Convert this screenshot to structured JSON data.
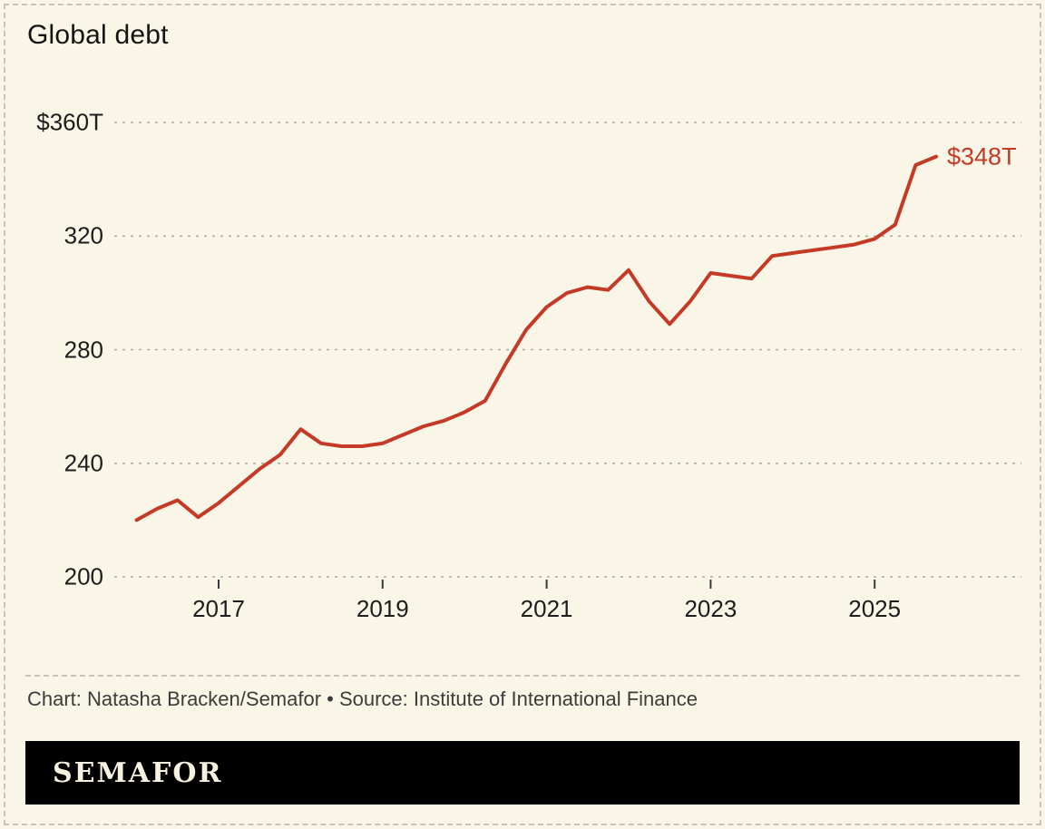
{
  "header": {
    "title": "Global debt"
  },
  "chart_data": {
    "type": "line",
    "title": "Global debt",
    "unit": "USD trillions",
    "series_name": "Global debt",
    "line_color": "#c43a27",
    "x": [
      2016,
      2016.25,
      2016.5,
      2016.75,
      2017,
      2017.25,
      2017.5,
      2017.75,
      2018,
      2018.25,
      2018.5,
      2018.75,
      2019,
      2019.25,
      2019.5,
      2019.75,
      2020,
      2020.25,
      2020.5,
      2020.75,
      2021,
      2021.25,
      2021.5,
      2021.75,
      2022,
      2022.25,
      2022.5,
      2022.75,
      2023,
      2023.25,
      2023.5,
      2023.75,
      2024,
      2024.25,
      2024.5,
      2024.75,
      2025,
      2025.25,
      2025.5,
      2025.75
    ],
    "values": [
      220,
      224,
      227,
      221,
      226,
      232,
      238,
      243,
      252,
      247,
      246,
      246,
      247,
      250,
      253,
      255,
      258,
      262,
      275,
      287,
      295,
      300,
      302,
      301,
      308,
      297,
      289,
      297,
      307,
      306,
      305,
      313,
      314,
      315,
      316,
      317,
      319,
      324,
      345,
      348
    ],
    "x_ticks": {
      "values": [
        2017,
        2019,
        2021,
        2023,
        2025
      ],
      "labels": [
        "2017",
        "2019",
        "2021",
        "2023",
        "2025"
      ]
    },
    "y_ticks": {
      "values": [
        360,
        320,
        280,
        240,
        200
      ],
      "labels": [
        "$360T",
        "320",
        "280",
        "240",
        "200"
      ]
    },
    "ylim": [
      200,
      360
    ],
    "xlim": [
      2016,
      2025.75
    ],
    "end_label": "$348T",
    "grid": "horizontal-dashed",
    "legend": "none"
  },
  "footer": {
    "credit": "Chart: Natasha Bracken/Semafor • Source: Institute of International Finance",
    "logo_text": "SEMAFOR"
  },
  "colors": {
    "line": "#c43a27",
    "background": "#f9f6e7",
    "grid": "#aeab9d",
    "logo_bar": "#000000",
    "logo_text": "#f7f2e0"
  }
}
